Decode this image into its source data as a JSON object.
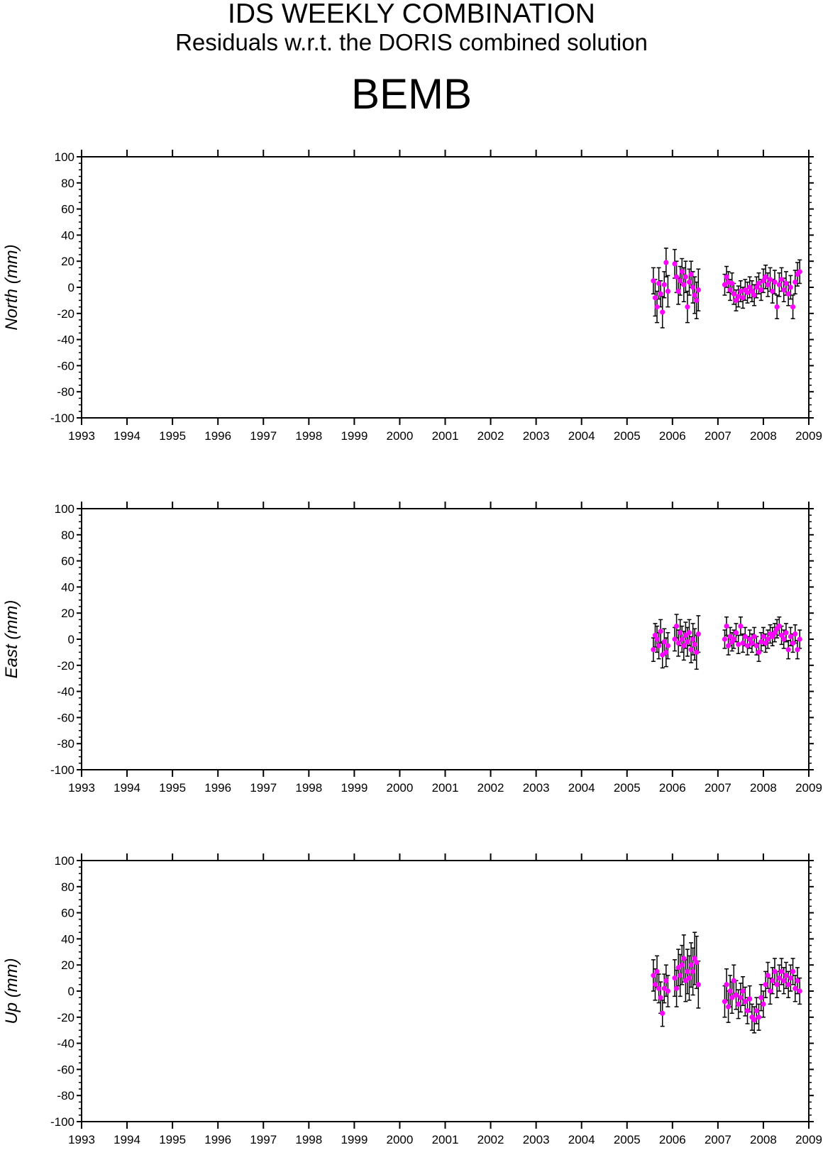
{
  "header": {
    "title": "IDS WEEKLY COMBINATION",
    "subtitle": "Residuals w.r.t. the DORIS combined solution",
    "station": "BEMB"
  },
  "colors": {
    "point": "#ff00ff",
    "errorbar": "#000000",
    "axis": "#000000"
  },
  "chart_data": [
    {
      "type": "scatter",
      "ylabel": "North (mm)",
      "xlim": [
        1993,
        2009
      ],
      "ylim": [
        -100,
        100
      ],
      "x_ticks": [
        "1993",
        "1994",
        "1995",
        "1996",
        "1997",
        "1998",
        "1999",
        "2000",
        "2001",
        "2002",
        "2003",
        "2004",
        "2005",
        "2006",
        "2007",
        "2008",
        "2009"
      ],
      "y_ticks": [
        "100",
        "80",
        "60",
        "40",
        "20",
        "0",
        "-20",
        "-40",
        "-60",
        "-80",
        "-100"
      ],
      "grid": false,
      "series": [
        {
          "error_bars": true,
          "points": [
            [
              2005.58,
              5,
              10
            ],
            [
              2005.62,
              -8,
              14
            ],
            [
              2005.66,
              -15,
              12
            ],
            [
              2005.7,
              3,
              12
            ],
            [
              2005.74,
              -5,
              10
            ],
            [
              2005.78,
              -19,
              12
            ],
            [
              2005.82,
              2,
              10
            ],
            [
              2005.86,
              19,
              11
            ],
            [
              2005.9,
              -3,
              12
            ],
            [
              2006.05,
              18,
              11
            ],
            [
              2006.09,
              8,
              12
            ],
            [
              2006.13,
              -3,
              10
            ],
            [
              2006.17,
              5,
              11
            ],
            [
              2006.21,
              12,
              10
            ],
            [
              2006.25,
              2,
              13
            ],
            [
              2006.29,
              8,
              12
            ],
            [
              2006.33,
              -15,
              12
            ],
            [
              2006.37,
              4,
              10
            ],
            [
              2006.41,
              10,
              10
            ],
            [
              2006.45,
              0,
              12
            ],
            [
              2006.49,
              -6,
              14
            ],
            [
              2006.53,
              -10,
              14
            ],
            [
              2006.57,
              -2,
              16
            ],
            [
              2007.15,
              2,
              8
            ],
            [
              2007.19,
              8,
              8
            ],
            [
              2007.23,
              4,
              8
            ],
            [
              2007.27,
              -2,
              8
            ],
            [
              2007.31,
              3,
              8
            ],
            [
              2007.35,
              -5,
              8
            ],
            [
              2007.4,
              -10,
              8
            ],
            [
              2007.45,
              -7,
              8
            ],
            [
              2007.5,
              -3,
              8
            ],
            [
              2007.55,
              -8,
              8
            ],
            [
              2007.6,
              -2,
              8
            ],
            [
              2007.65,
              -4,
              8
            ],
            [
              2007.7,
              0,
              8
            ],
            [
              2007.75,
              -3,
              8
            ],
            [
              2007.8,
              -6,
              8
            ],
            [
              2007.85,
              0,
              8
            ],
            [
              2007.9,
              3,
              8
            ],
            [
              2007.95,
              -2,
              8
            ],
            [
              2008.0,
              5,
              9
            ],
            [
              2008.05,
              8,
              9
            ],
            [
              2008.1,
              2,
              9
            ],
            [
              2008.15,
              6,
              9
            ],
            [
              2008.2,
              -3,
              9
            ],
            [
              2008.25,
              4,
              9
            ],
            [
              2008.3,
              -15,
              9
            ],
            [
              2008.35,
              2,
              9
            ],
            [
              2008.4,
              6,
              9
            ],
            [
              2008.45,
              -2,
              9
            ],
            [
              2008.5,
              3,
              9
            ],
            [
              2008.55,
              -5,
              9
            ],
            [
              2008.6,
              0,
              9
            ],
            [
              2008.65,
              -15,
              9
            ],
            [
              2008.7,
              4,
              9
            ],
            [
              2008.75,
              10,
              9
            ],
            [
              2008.8,
              12,
              9
            ]
          ]
        }
      ]
    },
    {
      "type": "scatter",
      "ylabel": "East (mm)",
      "xlim": [
        1993,
        2009
      ],
      "ylim": [
        -100,
        100
      ],
      "x_ticks": [
        "1993",
        "1994",
        "1995",
        "1996",
        "1997",
        "1998",
        "1999",
        "2000",
        "2001",
        "2002",
        "2003",
        "2004",
        "2005",
        "2006",
        "2007",
        "2008",
        "2009"
      ],
      "y_ticks": [
        "100",
        "80",
        "60",
        "40",
        "20",
        "0",
        "-20",
        "-40",
        "-60",
        "-80",
        "-100"
      ],
      "grid": false,
      "series": [
        {
          "error_bars": true,
          "points": [
            [
              2005.58,
              -8,
              9
            ],
            [
              2005.62,
              3,
              9
            ],
            [
              2005.66,
              0,
              10
            ],
            [
              2005.7,
              -5,
              10
            ],
            [
              2005.74,
              6,
              9
            ],
            [
              2005.78,
              -12,
              10
            ],
            [
              2005.82,
              -2,
              10
            ],
            [
              2005.86,
              -10,
              11
            ],
            [
              2005.9,
              -5,
              10
            ],
            [
              2006.05,
              0,
              9
            ],
            [
              2006.09,
              10,
              9
            ],
            [
              2006.13,
              -3,
              10
            ],
            [
              2006.17,
              5,
              10
            ],
            [
              2006.21,
              0,
              10
            ],
            [
              2006.25,
              -5,
              11
            ],
            [
              2006.29,
              3,
              10
            ],
            [
              2006.33,
              -2,
              11
            ],
            [
              2006.37,
              5,
              10
            ],
            [
              2006.41,
              -8,
              10
            ],
            [
              2006.45,
              0,
              12
            ],
            [
              2006.49,
              -4,
              12
            ],
            [
              2006.53,
              -10,
              13
            ],
            [
              2006.57,
              4,
              14
            ],
            [
              2007.15,
              0,
              7
            ],
            [
              2007.19,
              10,
              7
            ],
            [
              2007.23,
              -5,
              7
            ],
            [
              2007.27,
              2,
              7
            ],
            [
              2007.31,
              -2,
              7
            ],
            [
              2007.35,
              0,
              7
            ],
            [
              2007.4,
              5,
              7
            ],
            [
              2007.45,
              -4,
              7
            ],
            [
              2007.5,
              10,
              7
            ],
            [
              2007.55,
              -3,
              7
            ],
            [
              2007.6,
              2,
              7
            ],
            [
              2007.65,
              -5,
              7
            ],
            [
              2007.7,
              0,
              7
            ],
            [
              2007.75,
              -3,
              7
            ],
            [
              2007.8,
              2,
              7
            ],
            [
              2007.85,
              -5,
              7
            ],
            [
              2007.9,
              -10,
              7
            ],
            [
              2007.95,
              -2,
              7
            ],
            [
              2008.0,
              2,
              7
            ],
            [
              2008.05,
              -3,
              7
            ],
            [
              2008.1,
              0,
              7
            ],
            [
              2008.15,
              4,
              7
            ],
            [
              2008.2,
              2,
              7
            ],
            [
              2008.25,
              5,
              7
            ],
            [
              2008.3,
              8,
              7
            ],
            [
              2008.35,
              10,
              7
            ],
            [
              2008.4,
              3,
              7
            ],
            [
              2008.45,
              0,
              7
            ],
            [
              2008.5,
              5,
              7
            ],
            [
              2008.55,
              -8,
              7
            ],
            [
              2008.6,
              2,
              7
            ],
            [
              2008.65,
              -3,
              7
            ],
            [
              2008.7,
              4,
              7
            ],
            [
              2008.75,
              -8,
              7
            ],
            [
              2008.8,
              0,
              7
            ]
          ]
        }
      ]
    },
    {
      "type": "scatter",
      "ylabel": "Up (mm)",
      "xlim": [
        1993,
        2009
      ],
      "ylim": [
        -100,
        100
      ],
      "x_ticks": [
        "1993",
        "1994",
        "1995",
        "1996",
        "1997",
        "1998",
        "1999",
        "2000",
        "2001",
        "2002",
        "2003",
        "2004",
        "2005",
        "2006",
        "2007",
        "2008",
        "2009"
      ],
      "y_ticks": [
        "100",
        "80",
        "60",
        "40",
        "20",
        "0",
        "-20",
        "-40",
        "-60",
        "-80",
        "-100"
      ],
      "grid": false,
      "series": [
        {
          "error_bars": true,
          "points": [
            [
              2005.58,
              12,
              12
            ],
            [
              2005.62,
              5,
              12
            ],
            [
              2005.66,
              15,
              12
            ],
            [
              2005.7,
              2,
              11
            ],
            [
              2005.74,
              -5,
              12
            ],
            [
              2005.78,
              -17,
              10
            ],
            [
              2005.82,
              2,
              11
            ],
            [
              2005.86,
              8,
              12
            ],
            [
              2005.9,
              0,
              12
            ],
            [
              2006.05,
              10,
              14
            ],
            [
              2006.09,
              2,
              14
            ],
            [
              2006.13,
              18,
              14
            ],
            [
              2006.17,
              12,
              16
            ],
            [
              2006.21,
              20,
              15
            ],
            [
              2006.25,
              25,
              18
            ],
            [
              2006.29,
              8,
              16
            ],
            [
              2006.33,
              15,
              17
            ],
            [
              2006.37,
              10,
              17
            ],
            [
              2006.41,
              20,
              17
            ],
            [
              2006.45,
              15,
              18
            ],
            [
              2006.49,
              25,
              20
            ],
            [
              2006.53,
              22,
              20
            ],
            [
              2006.57,
              5,
              18
            ],
            [
              2007.15,
              -8,
              12
            ],
            [
              2007.19,
              5,
              12
            ],
            [
              2007.23,
              -12,
              12
            ],
            [
              2007.27,
              0,
              12
            ],
            [
              2007.31,
              -5,
              12
            ],
            [
              2007.35,
              8,
              12
            ],
            [
              2007.4,
              -3,
              11
            ],
            [
              2007.45,
              -10,
              11
            ],
            [
              2007.5,
              -5,
              11
            ],
            [
              2007.55,
              0,
              11
            ],
            [
              2007.6,
              -8,
              11
            ],
            [
              2007.65,
              -15,
              10
            ],
            [
              2007.7,
              -6,
              10
            ],
            [
              2007.75,
              -20,
              10
            ],
            [
              2007.8,
              -22,
              10
            ],
            [
              2007.85,
              -15,
              10
            ],
            [
              2007.9,
              -20,
              10
            ],
            [
              2007.95,
              -5,
              10
            ],
            [
              2008.0,
              -10,
              10
            ],
            [
              2008.05,
              5,
              10
            ],
            [
              2008.1,
              12,
              10
            ],
            [
              2008.15,
              0,
              10
            ],
            [
              2008.2,
              8,
              10
            ],
            [
              2008.25,
              15,
              10
            ],
            [
              2008.3,
              5,
              10
            ],
            [
              2008.35,
              10,
              10
            ],
            [
              2008.4,
              15,
              10
            ],
            [
              2008.45,
              8,
              10
            ],
            [
              2008.5,
              12,
              10
            ],
            [
              2008.55,
              5,
              10
            ],
            [
              2008.6,
              10,
              10
            ],
            [
              2008.65,
              15,
              10
            ],
            [
              2008.7,
              2,
              10
            ],
            [
              2008.75,
              8,
              10
            ],
            [
              2008.8,
              0,
              10
            ]
          ]
        }
      ]
    }
  ]
}
